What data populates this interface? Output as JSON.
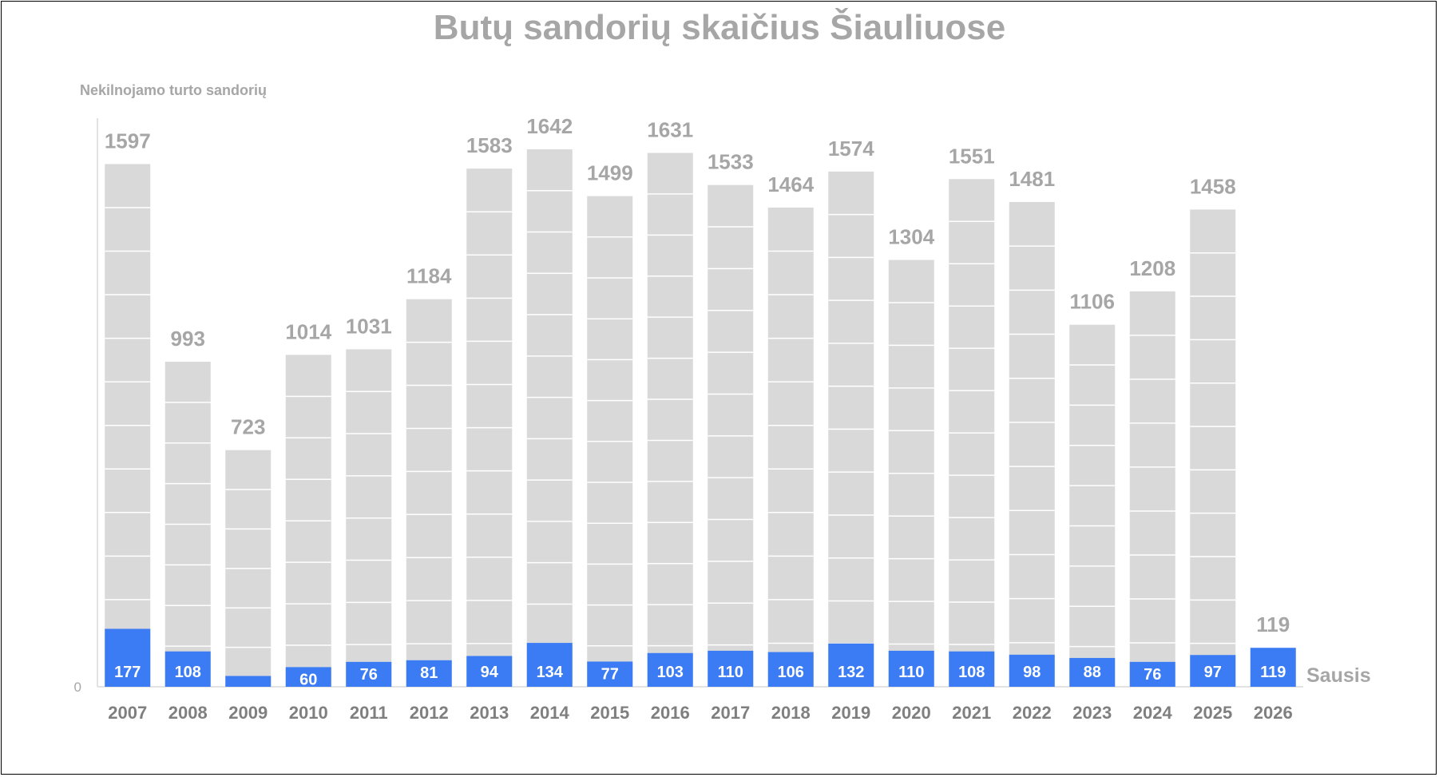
{
  "chart_data": {
    "type": "bar",
    "title": "Butų sandorių skaičius Šiauliuose",
    "ylabel": "Nekilnojamo turto sandorių",
    "xlabel": "",
    "y_tick_labels": [
      "0"
    ],
    "ylim": [
      0,
      1720
    ],
    "grid": false,
    "categories": [
      "2007",
      "2008",
      "2009",
      "2010",
      "2011",
      "2012",
      "2013",
      "2014",
      "2015",
      "2016",
      "2017",
      "2018",
      "2019",
      "2020",
      "2021",
      "2022",
      "2023",
      "2024",
      "2025",
      "2026"
    ],
    "series": [
      {
        "role": "year_total",
        "values": [
          1597,
          993,
          723,
          1014,
          1031,
          1184,
          1583,
          1642,
          1499,
          1631,
          1533,
          1464,
          1574,
          1304,
          1551,
          1481,
          1106,
          1208,
          1458,
          null
        ],
        "color": "#d9d9d9"
      },
      {
        "name": "Sausis",
        "role": "january",
        "values": [
          177,
          108,
          33,
          60,
          76,
          81,
          94,
          134,
          77,
          103,
          110,
          106,
          132,
          110,
          108,
          98,
          88,
          76,
          97,
          119
        ],
        "color": "#3b7cf5"
      }
    ],
    "top_labels": [
      "1597",
      "993",
      "723",
      "1014",
      "1031",
      "1184",
      "1583",
      "1642",
      "1499",
      "1631",
      "1533",
      "1464",
      "1574",
      "1304",
      "1551",
      "1481",
      "1106",
      "1208",
      "1458",
      "119"
    ],
    "series_label": "Sausis",
    "colors": {
      "total_bar": "#d9d9d9",
      "month_bar": "#3b7cf5",
      "segment_line": "#ffffff",
      "title": "#a6a6a6",
      "tick_label": "#7f7f7f",
      "axis_line": "#d9d9d9"
    }
  }
}
